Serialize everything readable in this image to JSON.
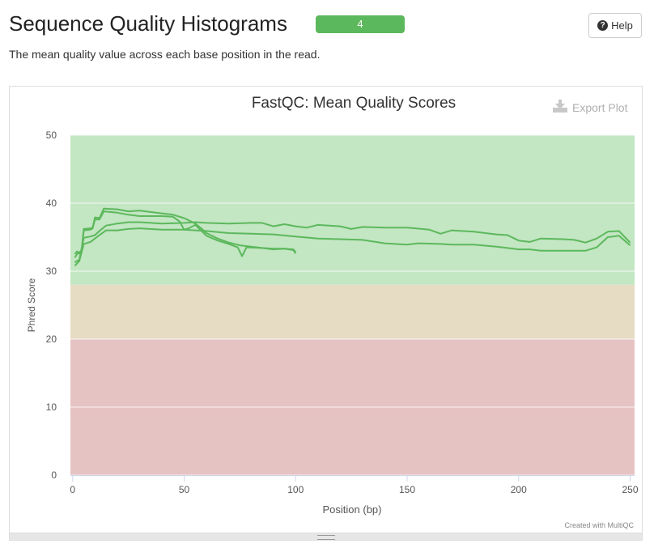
{
  "header": {
    "title": "Sequence Quality Histograms",
    "badge_count": "4",
    "help_label": "Help",
    "description": "The mean quality value across each base position in the read."
  },
  "plot": {
    "export_label": "Export Plot",
    "credit": "Created with MultiQC"
  },
  "chart_data": {
    "type": "line",
    "title": "FastQC: Mean Quality Scores",
    "xlabel": "Position (bp)",
    "ylabel": "Phred Score",
    "xlim": [
      -1,
      252
    ],
    "ylim": [
      0,
      50
    ],
    "xticks": [
      0,
      50,
      100,
      150,
      200,
      250
    ],
    "yticks": [
      0,
      10,
      20,
      30,
      40,
      50
    ],
    "grid": true,
    "legend": "none",
    "bands": [
      {
        "from": 28,
        "to": 50,
        "color": "#c3e6c3"
      },
      {
        "from": 20,
        "to": 28,
        "color": "#e6dcc3"
      },
      {
        "from": 0,
        "to": 20,
        "color": "#e6c3c3"
      }
    ],
    "line_color": "#5cb85c",
    "series": [
      {
        "points": [
          [
            1,
            32.0
          ],
          [
            2,
            32.5
          ],
          [
            3,
            32.8
          ],
          [
            4,
            33.0
          ],
          [
            5,
            36.2
          ],
          [
            8,
            36.3
          ],
          [
            9,
            36.4
          ],
          [
            10,
            37.9
          ],
          [
            12,
            37.8
          ],
          [
            13,
            38.5
          ],
          [
            14,
            39.2
          ],
          [
            20,
            39.1
          ],
          [
            25,
            38.8
          ],
          [
            30,
            38.9
          ],
          [
            40,
            38.5
          ],
          [
            45,
            38.3
          ],
          [
            50,
            37.8
          ],
          [
            55,
            37.0
          ],
          [
            58,
            36.2
          ],
          [
            60,
            35.6
          ],
          [
            65,
            34.8
          ],
          [
            70,
            34.2
          ],
          [
            75,
            33.8
          ],
          [
            80,
            33.6
          ],
          [
            85,
            33.4
          ],
          [
            90,
            33.3
          ],
          [
            95,
            33.3
          ],
          [
            99,
            33.2
          ],
          [
            100,
            32.8
          ]
        ]
      },
      {
        "points": [
          [
            1,
            32.5
          ],
          [
            2,
            32.9
          ],
          [
            3,
            32.6
          ],
          [
            4,
            32.9
          ],
          [
            5,
            36.0
          ],
          [
            8,
            36.1
          ],
          [
            9,
            36.3
          ],
          [
            10,
            37.6
          ],
          [
            12,
            37.6
          ],
          [
            13,
            38.2
          ],
          [
            14,
            38.8
          ],
          [
            20,
            38.6
          ],
          [
            25,
            38.3
          ],
          [
            30,
            38.1
          ],
          [
            40,
            38.1
          ],
          [
            45,
            38.0
          ],
          [
            48,
            37.3
          ],
          [
            50,
            36.1
          ],
          [
            52,
            36.3
          ],
          [
            55,
            36.8
          ],
          [
            60,
            35.2
          ],
          [
            65,
            34.5
          ],
          [
            70,
            34.0
          ],
          [
            74,
            33.5
          ],
          [
            76,
            32.2
          ],
          [
            78,
            33.5
          ],
          [
            85,
            33.4
          ],
          [
            90,
            33.2
          ],
          [
            95,
            33.3
          ],
          [
            99,
            33.1
          ],
          [
            100,
            32.6
          ]
        ]
      },
      {
        "points": [
          [
            1,
            31.3
          ],
          [
            3,
            31.7
          ],
          [
            5,
            34.9
          ],
          [
            8,
            35.1
          ],
          [
            10,
            35.3
          ],
          [
            12,
            35.9
          ],
          [
            15,
            36.7
          ],
          [
            20,
            37.0
          ],
          [
            25,
            37.2
          ],
          [
            30,
            37.2
          ],
          [
            40,
            37.0
          ],
          [
            50,
            37.1
          ],
          [
            55,
            37.2
          ],
          [
            60,
            37.1
          ],
          [
            70,
            37.0
          ],
          [
            80,
            37.1
          ],
          [
            85,
            37.1
          ],
          [
            90,
            36.6
          ],
          [
            95,
            36.9
          ],
          [
            100,
            36.6
          ],
          [
            105,
            36.4
          ],
          [
            110,
            36.8
          ],
          [
            115,
            36.7
          ],
          [
            120,
            36.6
          ],
          [
            125,
            36.2
          ],
          [
            130,
            36.5
          ],
          [
            140,
            36.4
          ],
          [
            150,
            36.4
          ],
          [
            160,
            36.1
          ],
          [
            165,
            35.5
          ],
          [
            170,
            36.0
          ],
          [
            180,
            35.8
          ],
          [
            190,
            35.4
          ],
          [
            195,
            35.3
          ],
          [
            200,
            34.5
          ],
          [
            205,
            34.3
          ],
          [
            210,
            34.8
          ],
          [
            220,
            34.7
          ],
          [
            225,
            34.6
          ],
          [
            230,
            34.2
          ],
          [
            235,
            34.8
          ],
          [
            240,
            35.8
          ],
          [
            245,
            35.9
          ],
          [
            250,
            34.2
          ]
        ]
      },
      {
        "points": [
          [
            1,
            30.8
          ],
          [
            3,
            31.5
          ],
          [
            5,
            34.0
          ],
          [
            8,
            34.3
          ],
          [
            10,
            34.8
          ],
          [
            12,
            35.3
          ],
          [
            15,
            36.0
          ],
          [
            20,
            36.0
          ],
          [
            25,
            36.2
          ],
          [
            30,
            36.3
          ],
          [
            40,
            36.1
          ],
          [
            50,
            36.1
          ],
          [
            55,
            36.0
          ],
          [
            60,
            35.9
          ],
          [
            70,
            35.6
          ],
          [
            80,
            35.5
          ],
          [
            90,
            35.4
          ],
          [
            100,
            35.1
          ],
          [
            110,
            34.8
          ],
          [
            120,
            34.7
          ],
          [
            130,
            34.6
          ],
          [
            140,
            34.1
          ],
          [
            150,
            33.9
          ],
          [
            155,
            34.1
          ],
          [
            165,
            34.0
          ],
          [
            170,
            33.9
          ],
          [
            180,
            33.9
          ],
          [
            190,
            33.6
          ],
          [
            195,
            33.4
          ],
          [
            200,
            33.2
          ],
          [
            205,
            33.2
          ],
          [
            210,
            33.0
          ],
          [
            220,
            33.0
          ],
          [
            230,
            33.0
          ],
          [
            235,
            33.5
          ],
          [
            240,
            35.0
          ],
          [
            245,
            35.2
          ],
          [
            250,
            33.8
          ]
        ]
      }
    ]
  }
}
